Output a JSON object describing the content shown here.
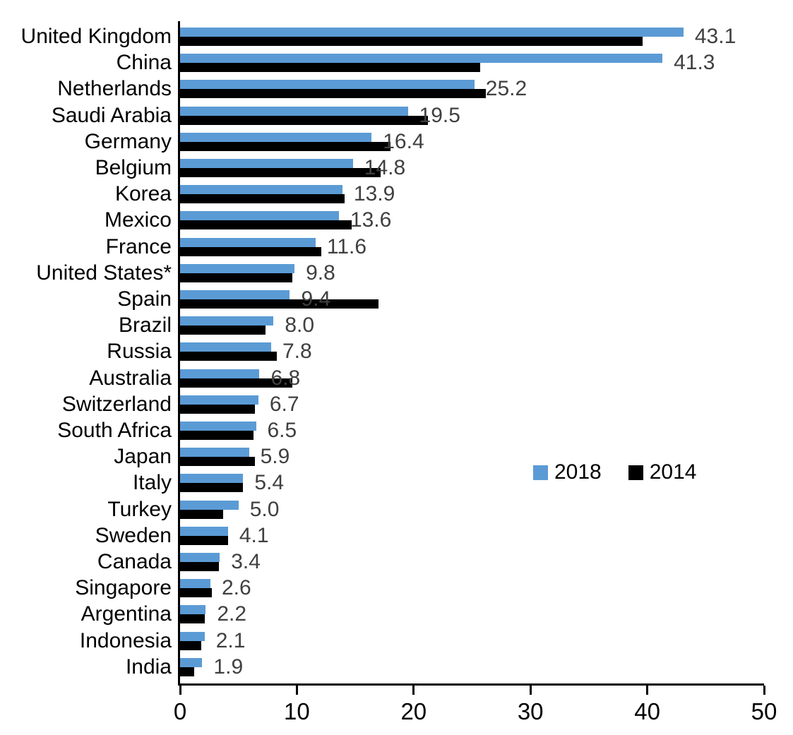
{
  "chart_data": {
    "type": "bar",
    "orientation": "horizontal",
    "title": "",
    "xlabel": "",
    "ylabel": "",
    "xlim": [
      0,
      50
    ],
    "x_ticks": [
      "0",
      "10",
      "20",
      "30",
      "40",
      "50"
    ],
    "grid": false,
    "legend_position": "middle-right",
    "categories": [
      "United Kingdom",
      "China",
      "Netherlands",
      "Saudi Arabia",
      "Germany",
      "Belgium",
      "Korea",
      "Mexico",
      "France",
      "United States*",
      "Spain",
      "Brazil",
      "Russia",
      "Australia",
      "Switzerland",
      "South Africa",
      "Japan",
      "Italy",
      "Turkey",
      "Sweden",
      "Canada",
      "Singapore",
      "Argentina",
      "Indonesia",
      "India"
    ],
    "series": [
      {
        "name": "2018",
        "color": "#5B9BD5",
        "values": [
          43.1,
          41.3,
          25.2,
          19.5,
          16.4,
          14.8,
          13.9,
          13.6,
          11.6,
          9.8,
          9.4,
          8.0,
          7.8,
          6.8,
          6.7,
          6.5,
          5.9,
          5.4,
          5.0,
          4.1,
          3.4,
          2.6,
          2.2,
          2.1,
          1.9
        ]
      },
      {
        "name": "2014",
        "color": "#000000",
        "values": [
          39.6,
          25.7,
          26.2,
          21.2,
          18.0,
          17.2,
          14.1,
          14.7,
          12.1,
          9.6,
          17.0,
          7.3,
          8.3,
          9.6,
          6.4,
          6.3,
          6.4,
          5.4,
          3.7,
          4.1,
          3.3,
          2.7,
          2.1,
          1.8,
          1.2
        ]
      }
    ],
    "data_labels": {
      "series": "2018",
      "values": [
        "43.1",
        "41.3",
        "25.2",
        "19.5",
        "16.4",
        "14.8",
        "13.9",
        "13.6",
        "11.6",
        "9.8",
        "9.4",
        "8.0",
        "7.8",
        "6.8",
        "6.7",
        "6.5",
        "5.9",
        "5.4",
        "5.0",
        "4.1",
        "3.4",
        "2.6",
        "2.2",
        "2.1",
        "1.9"
      ]
    }
  },
  "colors": {
    "series_2018": "#5B9BD5",
    "series_2014": "#000000",
    "value_label": "#404040",
    "axis": "#000000",
    "background": "#FFFFFF"
  },
  "legend": {
    "items": [
      {
        "label": "2018",
        "color": "#5B9BD5"
      },
      {
        "label": "2014",
        "color": "#000000"
      }
    ]
  }
}
